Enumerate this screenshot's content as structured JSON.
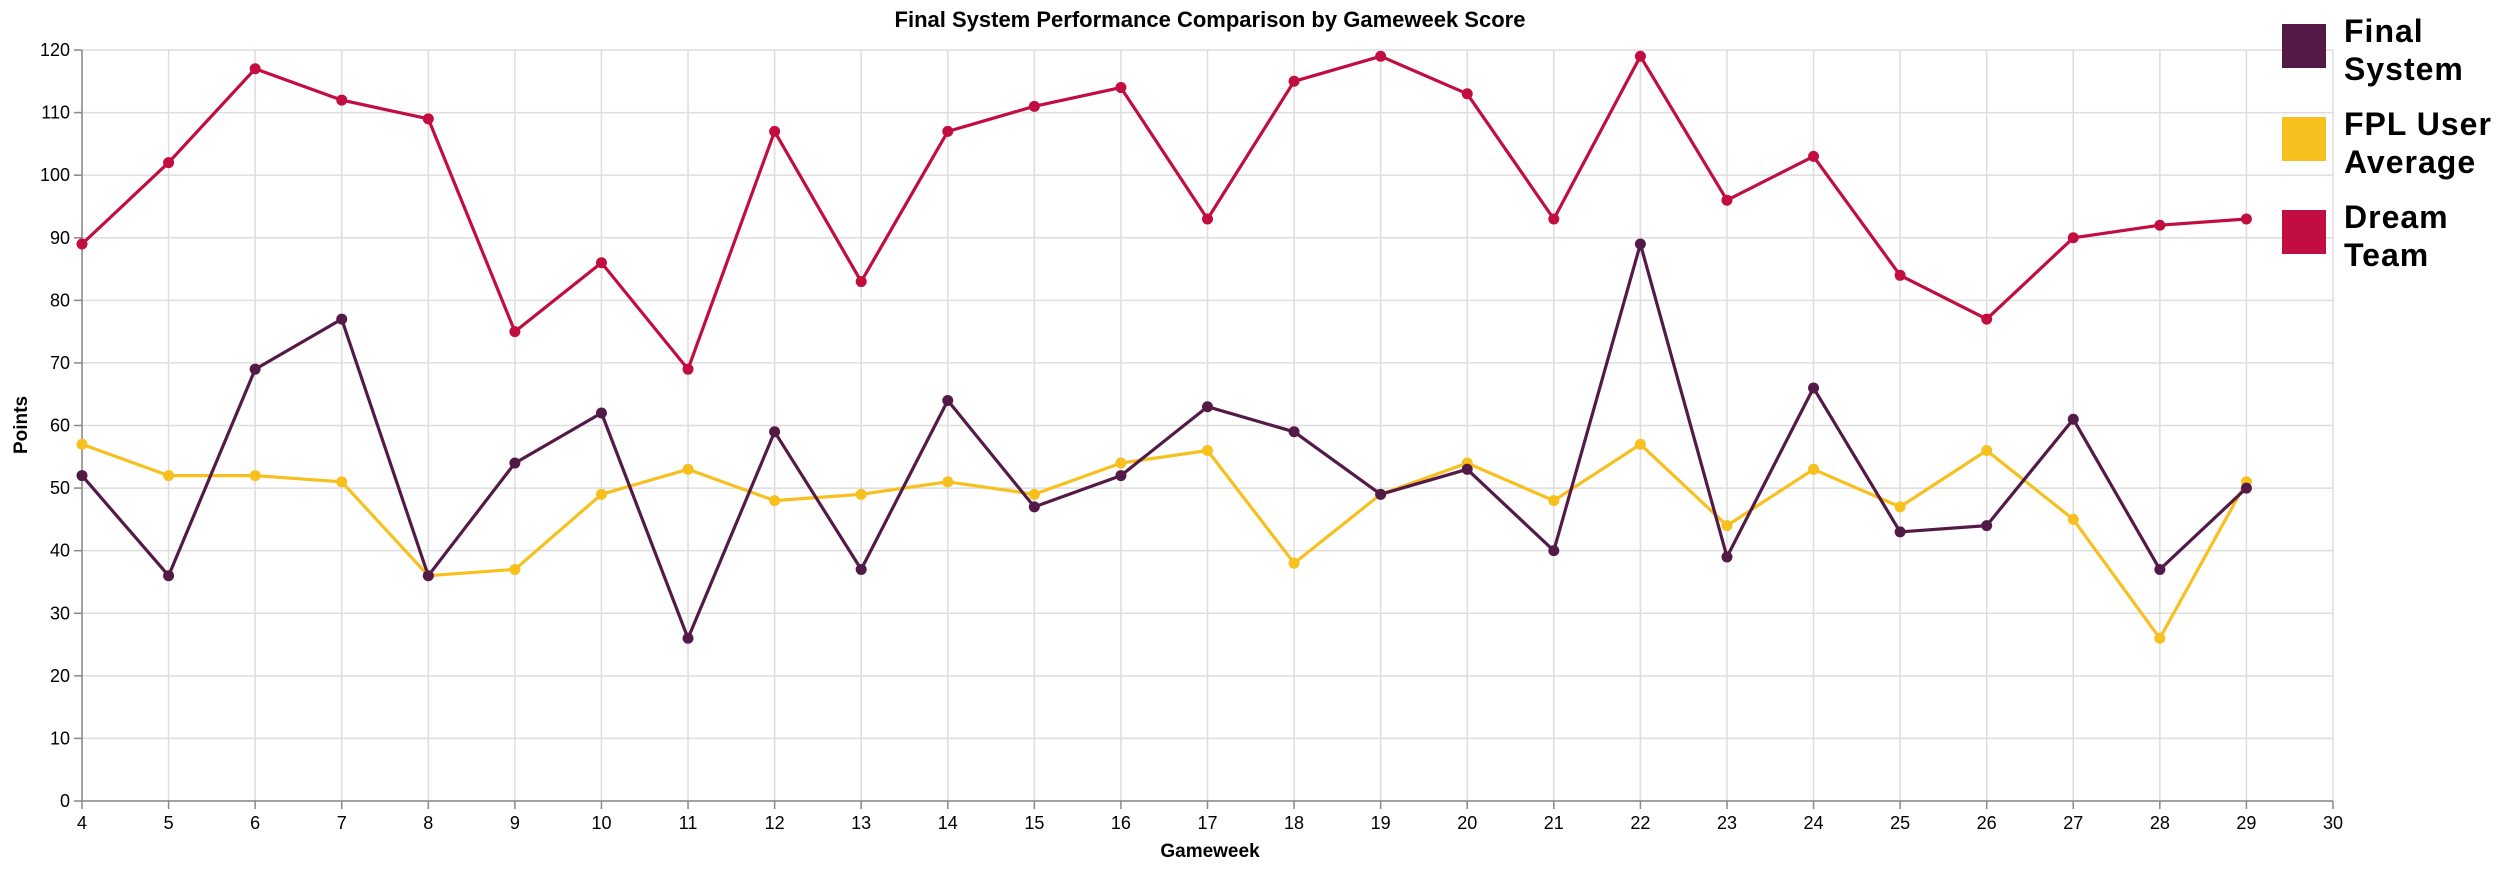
{
  "chart_data": {
    "type": "line",
    "title": "Final System Performance Comparison by Gameweek Score",
    "xlabel": "Gameweek",
    "ylabel": "Points",
    "xlim": [
      4,
      30
    ],
    "ylim": [
      0,
      120
    ],
    "x_ticks": [
      4,
      5,
      6,
      7,
      8,
      9,
      10,
      11,
      12,
      13,
      14,
      15,
      16,
      17,
      18,
      19,
      20,
      21,
      22,
      23,
      24,
      25,
      26,
      27,
      28,
      29,
      30
    ],
    "y_ticks": [
      0,
      10,
      20,
      30,
      40,
      50,
      60,
      70,
      80,
      90,
      100,
      110,
      120
    ],
    "grid": true,
    "legend_position": "right",
    "x": [
      4,
      5,
      6,
      7,
      8,
      9,
      10,
      11,
      12,
      13,
      14,
      15,
      16,
      17,
      18,
      19,
      20,
      21,
      22,
      23,
      24,
      25,
      26,
      27,
      28,
      29
    ],
    "series": [
      {
        "name": "Final System",
        "color": "#541a47",
        "values": [
          52,
          36,
          69,
          77,
          36,
          54,
          62,
          26,
          59,
          37,
          64,
          47,
          52,
          63,
          59,
          49,
          53,
          40,
          89,
          39,
          66,
          43,
          44,
          61,
          37,
          50
        ]
      },
      {
        "name": "FPL User Average",
        "color": "#f7c01e",
        "values": [
          57,
          52,
          52,
          51,
          36,
          37,
          49,
          53,
          48,
          49,
          51,
          49,
          54,
          56,
          38,
          49,
          54,
          48,
          57,
          44,
          53,
          47,
          56,
          45,
          26,
          51
        ]
      },
      {
        "name": "Dream Team",
        "color": "#c10d3f",
        "values": [
          89,
          102,
          117,
          112,
          109,
          75,
          86,
          69,
          107,
          83,
          107,
          111,
          114,
          93,
          115,
          119,
          113,
          93,
          119,
          96,
          103,
          84,
          77,
          90,
          92,
          93
        ]
      }
    ]
  },
  "legend": {
    "items": [
      {
        "label": "Final\nSystem",
        "color": "#541a47"
      },
      {
        "label": "FPL User\nAverage",
        "color": "#f7c01e"
      },
      {
        "label": "Dream\nTeam",
        "color": "#c10d3f"
      }
    ]
  }
}
